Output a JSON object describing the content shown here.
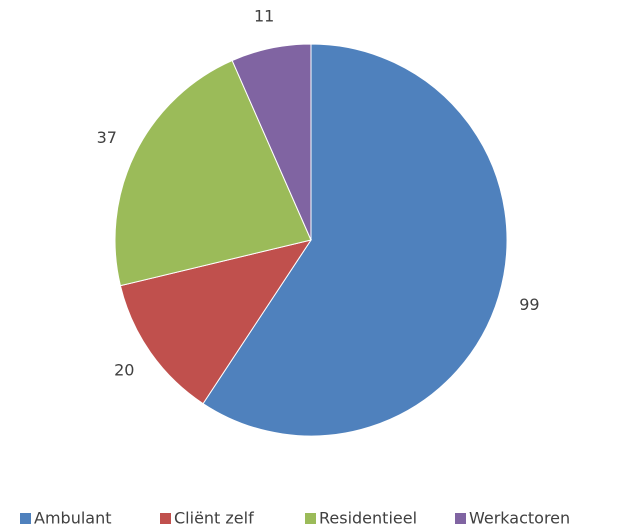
{
  "chart_data": {
    "type": "pie",
    "categories": [
      "Ambulant",
      "Cliënt zelf",
      "Residentieel",
      "Werkactoren"
    ],
    "values": [
      99,
      20,
      37,
      11
    ],
    "colors": [
      "#4f81bd",
      "#c0504d",
      "#9bbb59",
      "#8064a2"
    ],
    "legend": "bottom"
  }
}
